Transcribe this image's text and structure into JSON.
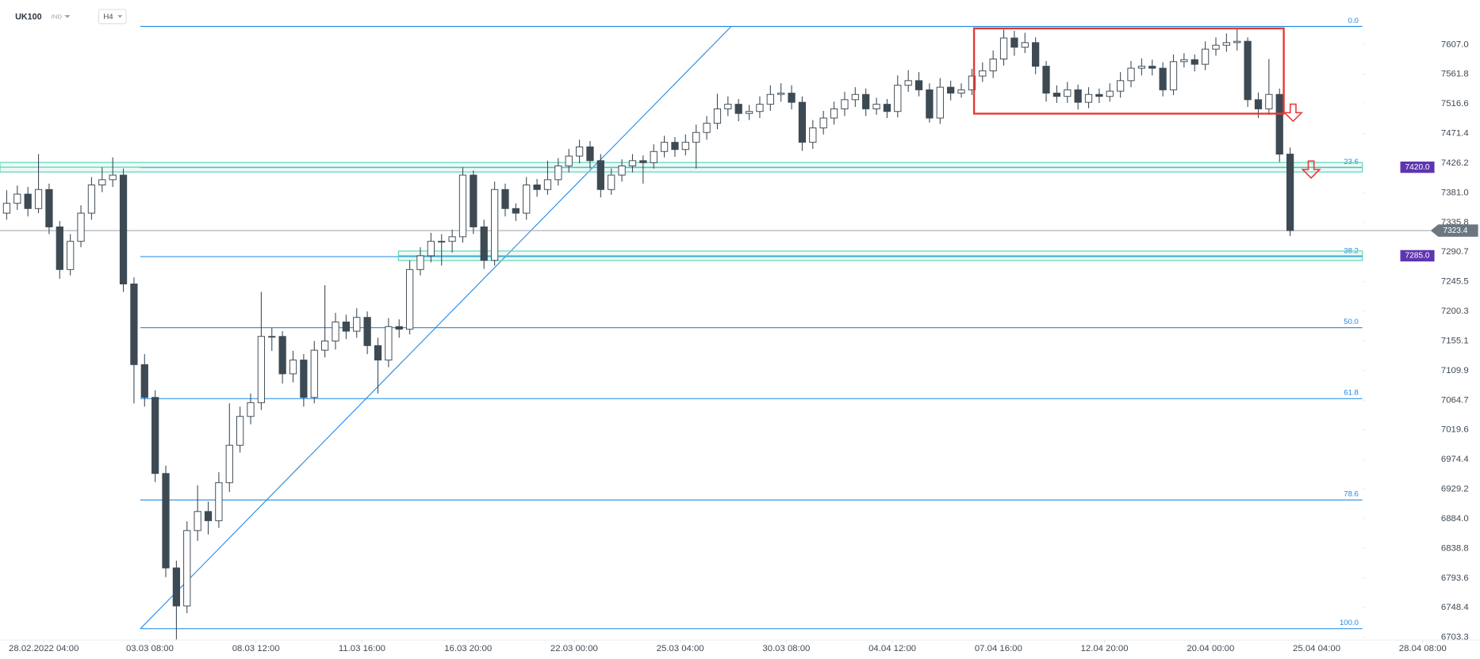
{
  "chart_data": {
    "type": "candlestick",
    "symbol": "UK100",
    "market": "IND",
    "interval": "H4",
    "xlim": [
      -0.63,
      138.9
    ],
    "ylim": [
      6699,
      7675
    ],
    "xticks": [
      {
        "value": 3.5,
        "label": "28.02.2022  04:00"
      },
      {
        "value": 13.5,
        "label": "03.03  08:00"
      },
      {
        "value": 23.5,
        "label": "08.03  12:00"
      },
      {
        "value": 33.5,
        "label": "11.03  16:00"
      },
      {
        "value": 43.5,
        "label": "16.03  20:00"
      },
      {
        "value": 53.5,
        "label": "22.03  00:00"
      },
      {
        "value": 63.5,
        "label": "25.03  04:00"
      },
      {
        "value": 73.5,
        "label": "30.03  08:00"
      },
      {
        "value": 83.5,
        "label": "04.04  12:00"
      },
      {
        "value": 93.5,
        "label": "07.04  16:00"
      },
      {
        "value": 103.5,
        "label": "12.04  20:00"
      },
      {
        "value": 113.5,
        "label": "20.04  00:00"
      },
      {
        "value": 123.5,
        "label": "25.04  04:00"
      },
      {
        "value": 133.5,
        "label": "28.04  08:00"
      }
    ],
    "yticks": [
      {
        "value": 7607,
        "label": "7607.0"
      },
      7561.8,
      7516.6,
      7471.4,
      7426.2,
      {
        "value": 7381,
        "label": "7381.0"
      },
      7335.8,
      7290.7,
      7245.5,
      7200.3,
      7155.1,
      7109.9,
      7064.7,
      7019.6,
      6974.4,
      6929.2,
      {
        "value": 6884,
        "label": "6884.0"
      },
      6838.8,
      6793.6,
      6748.4,
      6703.3
    ],
    "up_color": "#ffffff",
    "down_color": "#3d4a54",
    "candles": [
      [
        7350,
        7385,
        7340,
        7365
      ],
      [
        7365,
        7392,
        7355,
        7379
      ],
      [
        7379,
        7390,
        7345,
        7357
      ],
      [
        7357,
        7440,
        7350,
        7386
      ],
      [
        7386,
        7395,
        7318,
        7329
      ],
      [
        7329,
        7338,
        7250,
        7264
      ],
      [
        7264,
        7318,
        7255,
        7307
      ],
      [
        7307,
        7362,
        7298,
        7350
      ],
      [
        7350,
        7405,
        7340,
        7393
      ],
      [
        7393,
        7420,
        7382,
        7401
      ],
      [
        7401,
        7435,
        7390,
        7408
      ],
      [
        7408,
        7418,
        7230,
        7242
      ],
      [
        7242,
        7252,
        7060,
        7119
      ],
      [
        7119,
        7135,
        7055,
        7069
      ],
      [
        7069,
        7080,
        6940,
        6953
      ],
      [
        6953,
        6965,
        6795,
        6809
      ],
      [
        6809,
        6820,
        6700,
        6751
      ],
      [
        6751,
        6880,
        6740,
        6866
      ],
      [
        6866,
        6935,
        6850,
        6895
      ],
      [
        6895,
        6910,
        6860,
        6881
      ],
      [
        6881,
        6955,
        6870,
        6939
      ],
      [
        6939,
        7060,
        6925,
        6996
      ],
      [
        6996,
        7055,
        6985,
        7040
      ],
      [
        7040,
        7075,
        7028,
        7061
      ],
      [
        7061,
        7230,
        7050,
        7162
      ],
      [
        7162,
        7175,
        7140,
        7162
      ],
      [
        7162,
        7170,
        7090,
        7105
      ],
      [
        7105,
        7140,
        7092,
        7126
      ],
      [
        7126,
        7135,
        7055,
        7069
      ],
      [
        7069,
        7155,
        7060,
        7141
      ],
      [
        7141,
        7240,
        7130,
        7155
      ],
      [
        7155,
        7198,
        7142,
        7184
      ],
      [
        7184,
        7195,
        7158,
        7170
      ],
      [
        7170,
        7205,
        7160,
        7191
      ],
      [
        7191,
        7200,
        7135,
        7148
      ],
      [
        7148,
        7160,
        7075,
        7126
      ],
      [
        7126,
        7190,
        7115,
        7177
      ],
      [
        7177,
        7188,
        7160,
        7173
      ],
      [
        7173,
        7278,
        7165,
        7264
      ],
      [
        7264,
        7298,
        7255,
        7285
      ],
      [
        7285,
        7320,
        7275,
        7307
      ],
      [
        7307,
        7318,
        7270,
        7307
      ],
      [
        7307,
        7325,
        7290,
        7314
      ],
      [
        7314,
        7420,
        7305,
        7408
      ],
      [
        7408,
        7415,
        7318,
        7329
      ],
      [
        7329,
        7340,
        7265,
        7278
      ],
      [
        7278,
        7398,
        7270,
        7386
      ],
      [
        7386,
        7395,
        7345,
        7357
      ],
      [
        7357,
        7365,
        7338,
        7350
      ],
      [
        7350,
        7405,
        7340,
        7393
      ],
      [
        7393,
        7402,
        7375,
        7386
      ],
      [
        7386,
        7430,
        7378,
        7401
      ],
      [
        7401,
        7434,
        7392,
        7422
      ],
      [
        7422,
        7448,
        7412,
        7437
      ],
      [
        7437,
        7462,
        7426,
        7451
      ],
      [
        7451,
        7460,
        7418,
        7430
      ],
      [
        7430,
        7440,
        7374,
        7386
      ],
      [
        7386,
        7418,
        7378,
        7408
      ],
      [
        7408,
        7432,
        7398,
        7422
      ],
      [
        7422,
        7440,
        7412,
        7430
      ],
      [
        7430,
        7438,
        7395,
        7427
      ],
      [
        7427,
        7455,
        7418,
        7444
      ],
      [
        7444,
        7468,
        7435,
        7458
      ],
      [
        7458,
        7466,
        7436,
        7447
      ],
      [
        7447,
        7470,
        7438,
        7458
      ],
      [
        7458,
        7485,
        7418,
        7473
      ],
      [
        7473,
        7498,
        7462,
        7487
      ],
      [
        7487,
        7532,
        7478,
        7509
      ],
      [
        7509,
        7528,
        7498,
        7516
      ],
      [
        7516,
        7524,
        7490,
        7502
      ],
      [
        7502,
        7515,
        7492,
        7505
      ],
      [
        7505,
        7528,
        7495,
        7516
      ],
      [
        7516,
        7545,
        7506,
        7531
      ],
      [
        7531,
        7548,
        7520,
        7533
      ],
      [
        7533,
        7545,
        7508,
        7519
      ],
      [
        7519,
        7528,
        7445,
        7458
      ],
      [
        7458,
        7492,
        7448,
        7480
      ],
      [
        7480,
        7506,
        7470,
        7495
      ],
      [
        7495,
        7520,
        7485,
        7509
      ],
      [
        7509,
        7535,
        7498,
        7523
      ],
      [
        7523,
        7542,
        7512,
        7531
      ],
      [
        7531,
        7540,
        7498,
        7509
      ],
      [
        7509,
        7526,
        7500,
        7516
      ],
      [
        7516,
        7524,
        7495,
        7505
      ],
      [
        7505,
        7560,
        7496,
        7545
      ],
      [
        7545,
        7568,
        7535,
        7552
      ],
      [
        7552,
        7565,
        7528,
        7538
      ],
      [
        7538,
        7548,
        7488,
        7495
      ],
      [
        7495,
        7556,
        7486,
        7542
      ],
      [
        7542,
        7552,
        7522,
        7533
      ],
      [
        7533,
        7548,
        7526,
        7538
      ],
      [
        7538,
        7570,
        7530,
        7559
      ],
      [
        7559,
        7580,
        7550,
        7567
      ],
      [
        7567,
        7598,
        7556,
        7585
      ],
      [
        7585,
        7630,
        7575,
        7617
      ],
      [
        7617,
        7628,
        7590,
        7603
      ],
      [
        7603,
        7625,
        7594,
        7610
      ],
      [
        7610,
        7618,
        7562,
        7574
      ],
      [
        7574,
        7582,
        7520,
        7533
      ],
      [
        7533,
        7545,
        7518,
        7528
      ],
      [
        7528,
        7550,
        7518,
        7538
      ],
      [
        7538,
        7546,
        7508,
        7519
      ],
      [
        7519,
        7542,
        7510,
        7531
      ],
      [
        7531,
        7540,
        7518,
        7528
      ],
      [
        7528,
        7548,
        7520,
        7536
      ],
      [
        7536,
        7565,
        7526,
        7552
      ],
      [
        7552,
        7582,
        7542,
        7571
      ],
      [
        7571,
        7586,
        7560,
        7574
      ],
      [
        7574,
        7584,
        7560,
        7571
      ],
      [
        7571,
        7580,
        7528,
        7538
      ],
      [
        7538,
        7592,
        7530,
        7581
      ],
      [
        7581,
        7594,
        7572,
        7584
      ],
      [
        7584,
        7592,
        7566,
        7577
      ],
      [
        7577,
        7612,
        7568,
        7600
      ],
      [
        7600,
        7618,
        7590,
        7606
      ],
      [
        7606,
        7624,
        7596,
        7610
      ],
      [
        7610,
        7632,
        7598,
        7612
      ],
      [
        7612,
        7618,
        7512,
        7523
      ],
      [
        7523,
        7534,
        7495,
        7509
      ],
      [
        7509,
        7585,
        7500,
        7531
      ],
      [
        7531,
        7540,
        7428,
        7440
      ],
      [
        7440,
        7450,
        7315,
        7323.4
      ]
    ],
    "fib_color": "#1e88e5",
    "fib": [
      {
        "label": "0.0",
        "price": 7634.6
      },
      {
        "label": "23.6",
        "price": 7419.4
      },
      {
        "label": "38.2",
        "price": 7283.7
      },
      {
        "label": "50.0",
        "price": 7175.4
      },
      {
        "label": "61.8",
        "price": 7067.2
      },
      {
        "label": "78.6",
        "price": 6912.7
      },
      {
        "label": "100.0",
        "price": 6716.3
      }
    ],
    "trendline": {
      "x": [
        12.6,
        68.3
      ],
      "y": [
        6716.3,
        7634.6
      ]
    },
    "zone_color": "#5fd3b8",
    "levels": [
      {
        "value": 7420,
        "label": "7420.0"
      },
      {
        "value": 7285,
        "label": "7285.0"
      }
    ],
    "level_label_color": "#5e35b1",
    "last_price": 7323.4,
    "box": {
      "x": [
        91.2,
        120.4
      ],
      "y": [
        7631.7,
        7501.7
      ],
      "color": "#e53935"
    }
  }
}
